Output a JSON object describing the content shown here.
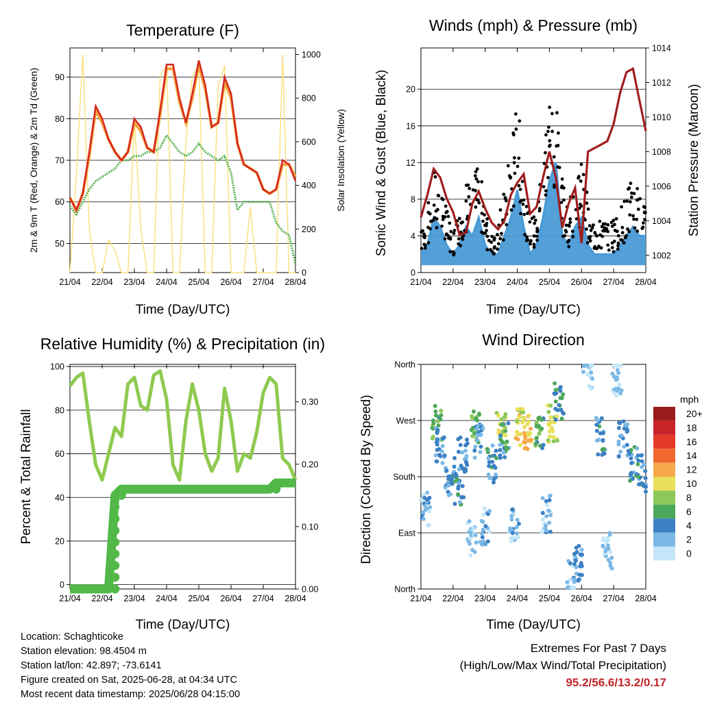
{
  "x_ticks": [
    "21/04",
    "22/04",
    "23/04",
    "24/04",
    "25/04",
    "26/04",
    "27/04",
    "28/04"
  ],
  "xlabel": "Time (Day/UTC)",
  "colors": {
    "temp2m": "#d62a20",
    "temp9m": "#f2a13a",
    "dewpoint": "#4fb04a",
    "solar": "#f7e07a",
    "gust": "#000000",
    "wind": "#4a9ad6",
    "pressure": "#a11d1d",
    "rh": "#8fca50",
    "precip": "#52b848"
  },
  "info": {
    "location": "Location: Schaghticoke",
    "elevation": "Station elevation: 98.4504 m",
    "latlon": "Station lat/lon: 42.897; -73.6141",
    "created": "Figure created on Sat, 2025-06-28, at 04:34 UTC",
    "recent": "Most recent data timestamp: 2025/06/28 04:15:00"
  },
  "extremes": {
    "title": "Extremes For Past 7 Days",
    "subtitle": "(High/Low/Max Wind/Total Precipitation)",
    "values": "95.2/56.6/13.2/0.17"
  },
  "chart_data": [
    {
      "type": "line",
      "title": "Temperature (F)",
      "xlabel": "Time (Day/UTC)",
      "ylabel": "2m & 9m T (Red, Orange) & 2m Td (Green)",
      "ylabel_right": "Solar Insolation (Yellow)",
      "ylim": [
        43,
        97
      ],
      "ylim_right": [
        0,
        1030
      ],
      "yticks": [
        50,
        60,
        70,
        80,
        90
      ],
      "yticks_right": [
        0,
        200,
        400,
        600,
        800,
        1000
      ],
      "x": [
        0,
        0.2,
        0.4,
        0.6,
        0.8,
        1.0,
        1.2,
        1.4,
        1.6,
        1.8,
        2.0,
        2.2,
        2.4,
        2.6,
        2.8,
        3.0,
        3.2,
        3.4,
        3.6,
        3.8,
        4.0,
        4.2,
        4.4,
        4.6,
        4.8,
        5.0,
        5.2,
        5.4,
        5.6,
        5.8,
        6.0,
        6.2,
        6.4,
        6.6,
        6.8,
        7.0
      ],
      "series": [
        {
          "name": "2m T",
          "axis": "left",
          "values": [
            61,
            58,
            62,
            72,
            83,
            80,
            75,
            72,
            70,
            72,
            80,
            78,
            73,
            72,
            82,
            93,
            93,
            85,
            79,
            86,
            94,
            88,
            78,
            79,
            90,
            86,
            74,
            69,
            68,
            67,
            63,
            62,
            63,
            70,
            69,
            65
          ]
        },
        {
          "name": "9m T",
          "axis": "left",
          "values": [
            61,
            58,
            62,
            71,
            82,
            79,
            75,
            72,
            70,
            72,
            79,
            77,
            73,
            72,
            81,
            92,
            92,
            84,
            79,
            85,
            93,
            87,
            78,
            79,
            89,
            85,
            74,
            69,
            68,
            67,
            63,
            62,
            63,
            69,
            69,
            66
          ]
        },
        {
          "name": "2m Td",
          "axis": "left",
          "values": [
            59,
            57,
            60,
            63,
            65,
            66,
            67,
            68,
            70,
            70,
            71,
            71,
            72,
            72,
            73,
            76,
            74,
            72,
            71,
            72,
            74,
            72,
            71,
            70,
            71,
            67,
            58,
            60,
            60,
            60,
            60,
            60,
            55,
            53,
            52,
            45
          ]
        },
        {
          "name": "Solar",
          "axis": "right",
          "values": [
            0,
            450,
            1000,
            200,
            0,
            0,
            150,
            100,
            0,
            0,
            700,
            200,
            0,
            0,
            900,
            950,
            0,
            0,
            600,
            900,
            950,
            0,
            0,
            850,
            950,
            0,
            0,
            0,
            300,
            0,
            0,
            0,
            0,
            1000,
            0,
            0
          ]
        }
      ]
    },
    {
      "type": "line",
      "title": "Winds (mph) & Pressure (mb)",
      "xlabel": "Time (Day/UTC)",
      "ylabel": "Sonic Wind & Gust (Blue, Black)",
      "ylabel_right": "Station Pressure (Maroon)",
      "ylim": [
        0,
        24.5
      ],
      "ylim_right": [
        1001.0,
        1014.0
      ],
      "yticks": [
        0,
        4,
        8,
        12,
        16,
        20
      ],
      "yticks_right": [
        1002,
        1004,
        1006,
        1008,
        1010,
        1012,
        1014
      ],
      "x": [
        0,
        0.2,
        0.4,
        0.6,
        0.8,
        1.0,
        1.2,
        1.4,
        1.6,
        1.8,
        2.0,
        2.2,
        2.4,
        2.6,
        2.8,
        3.0,
        3.2,
        3.4,
        3.6,
        3.8,
        4.0,
        4.2,
        4.4,
        4.6,
        4.8,
        5.0,
        5.2,
        5.4,
        5.6,
        5.8,
        6.0,
        6.2,
        6.4,
        6.6,
        6.8,
        7.0
      ],
      "series": [
        {
          "name": "Wind",
          "axis": "left",
          "values": [
            2,
            3,
            6,
            5,
            3,
            2,
            3,
            5,
            4,
            6,
            3,
            2,
            2,
            4,
            6,
            9,
            5,
            2,
            3,
            6,
            10,
            12,
            4,
            3,
            5,
            6,
            3,
            2,
            2,
            2,
            2,
            3,
            4,
            5,
            4,
            4
          ]
        },
        {
          "name": "Gust",
          "axis": "left",
          "values": [
            4,
            6,
            10,
            9,
            6,
            4,
            6,
            9,
            8,
            11,
            6,
            4,
            5,
            8,
            12,
            17,
            10,
            5,
            6,
            11,
            18,
            19,
            9,
            6,
            10,
            11,
            7,
            5,
            5,
            5,
            5,
            6,
            8,
            9,
            8,
            9
          ]
        },
        {
          "name": "Pressure",
          "axis": "right",
          "values": [
            1004.2,
            1005.5,
            1007.0,
            1006.5,
            1005.3,
            1004.5,
            1003.2,
            1003.3,
            1005.0,
            1005.7,
            1004.7,
            1003.9,
            1003.5,
            1004.0,
            1005.5,
            1006.2,
            1006.7,
            1004.4,
            1004.8,
            1006.5,
            1008.0,
            1006.5,
            1003.6,
            1005.0,
            1005.9,
            1002.7,
            1008.0,
            1008.2,
            1008.4,
            1008.6,
            1009.6,
            1011.4,
            1012.6,
            1012.8,
            1011.0,
            1009.2
          ]
        }
      ]
    },
    {
      "type": "line",
      "title": "Relative Humidity (%) & Precipitation (in)",
      "xlabel": "Time (Day/UTC)",
      "ylabel": "Percent & Total Rainfall",
      "ylim": [
        -2,
        101
      ],
      "ylim_right": [
        0,
        0.36
      ],
      "yticks": [
        0,
        20,
        40,
        60,
        80,
        100
      ],
      "yticks_right": [
        0.0,
        0.1,
        0.2,
        0.3
      ],
      "yticklabels_right": [
        "0.00",
        "0.10",
        "0.20",
        "0.30"
      ],
      "x": [
        0,
        0.2,
        0.4,
        0.6,
        0.8,
        1.0,
        1.2,
        1.4,
        1.6,
        1.8,
        2.0,
        2.2,
        2.4,
        2.6,
        2.8,
        3.0,
        3.2,
        3.4,
        3.6,
        3.8,
        4.0,
        4.2,
        4.4,
        4.6,
        4.8,
        5.0,
        5.2,
        5.4,
        5.6,
        5.8,
        6.0,
        6.2,
        6.4,
        6.6,
        6.8,
        7.0
      ],
      "series": [
        {
          "name": "RH",
          "axis": "left",
          "values": [
            91,
            95,
            97,
            75,
            55,
            48,
            60,
            72,
            68,
            92,
            95,
            82,
            80,
            96,
            98,
            85,
            55,
            48,
            75,
            92,
            80,
            60,
            52,
            58,
            90,
            75,
            52,
            60,
            58,
            70,
            88,
            95,
            92,
            58,
            55,
            48
          ]
        },
        {
          "name": "Precip",
          "axis": "right",
          "values": [
            0,
            0,
            0,
            0,
            0,
            0,
            0,
            0.15,
            0.16,
            0.16,
            0.16,
            0.16,
            0.16,
            0.16,
            0.16,
            0.16,
            0.16,
            0.16,
            0.16,
            0.16,
            0.16,
            0.16,
            0.16,
            0.16,
            0.16,
            0.16,
            0.16,
            0.16,
            0.16,
            0.16,
            0.16,
            0.16,
            0.17,
            0.17,
            0.17,
            0.17
          ]
        }
      ]
    },
    {
      "type": "scatter",
      "title": "Wind Direction",
      "xlabel": "Time (Day/UTC)",
      "ylabel": "Direction (Colored By Speed)",
      "yticklabels": [
        "North",
        "East",
        "South",
        "West",
        "North"
      ],
      "yticks": [
        0,
        90,
        180,
        270,
        360
      ],
      "legend_title": "mph",
      "legend": [
        "20+",
        "18",
        "16",
        "14",
        "12",
        "10",
        "8",
        "6",
        "4",
        "2",
        "0"
      ],
      "legend_colors": [
        "#9b1c1c",
        "#c8242a",
        "#e43a2a",
        "#f06a30",
        "#f6a84a",
        "#e9df58",
        "#8cc85a",
        "#4ca85a",
        "#3c80c4",
        "#7bb8e6",
        "#c4e6f8"
      ],
      "clusters": [
        {
          "x": 0.15,
          "dir": 130,
          "speed": 2
        },
        {
          "x": 0.5,
          "dir": 265,
          "speed": 6
        },
        {
          "x": 0.6,
          "dir": 230,
          "speed": 3
        },
        {
          "x": 0.9,
          "dir": 180,
          "speed": 3
        },
        {
          "x": 1.2,
          "dir": 165,
          "speed": 4
        },
        {
          "x": 1.3,
          "dir": 215,
          "speed": 3
        },
        {
          "x": 1.6,
          "dir": 80,
          "speed": 1
        },
        {
          "x": 1.7,
          "dir": 255,
          "speed": 7
        },
        {
          "x": 1.8,
          "dir": 240,
          "speed": 3
        },
        {
          "x": 2.0,
          "dir": 100,
          "speed": 2
        },
        {
          "x": 2.2,
          "dir": 200,
          "speed": 4
        },
        {
          "x": 2.5,
          "dir": 260,
          "speed": 9
        },
        {
          "x": 2.6,
          "dir": 240,
          "speed": 4
        },
        {
          "x": 2.9,
          "dir": 100,
          "speed": 2
        },
        {
          "x": 3.1,
          "dir": 260,
          "speed": 10
        },
        {
          "x": 3.3,
          "dir": 250,
          "speed": 11
        },
        {
          "x": 3.7,
          "dir": 250,
          "speed": 6
        },
        {
          "x": 3.9,
          "dir": 120,
          "speed": 2
        },
        {
          "x": 4.1,
          "dir": 265,
          "speed": 9
        },
        {
          "x": 4.3,
          "dir": 300,
          "speed": 5
        },
        {
          "x": 4.7,
          "dir": 20,
          "speed": 2
        },
        {
          "x": 4.9,
          "dir": 40,
          "speed": 3
        },
        {
          "x": 5.2,
          "dir": 350,
          "speed": 1
        },
        {
          "x": 5.6,
          "dir": 245,
          "speed": 4
        },
        {
          "x": 5.8,
          "dir": 60,
          "speed": 1
        },
        {
          "x": 6.1,
          "dir": 340,
          "speed": 1
        },
        {
          "x": 6.3,
          "dir": 240,
          "speed": 3
        },
        {
          "x": 6.6,
          "dir": 200,
          "speed": 4
        },
        {
          "x": 6.9,
          "dir": 185,
          "speed": 4
        }
      ]
    }
  ]
}
